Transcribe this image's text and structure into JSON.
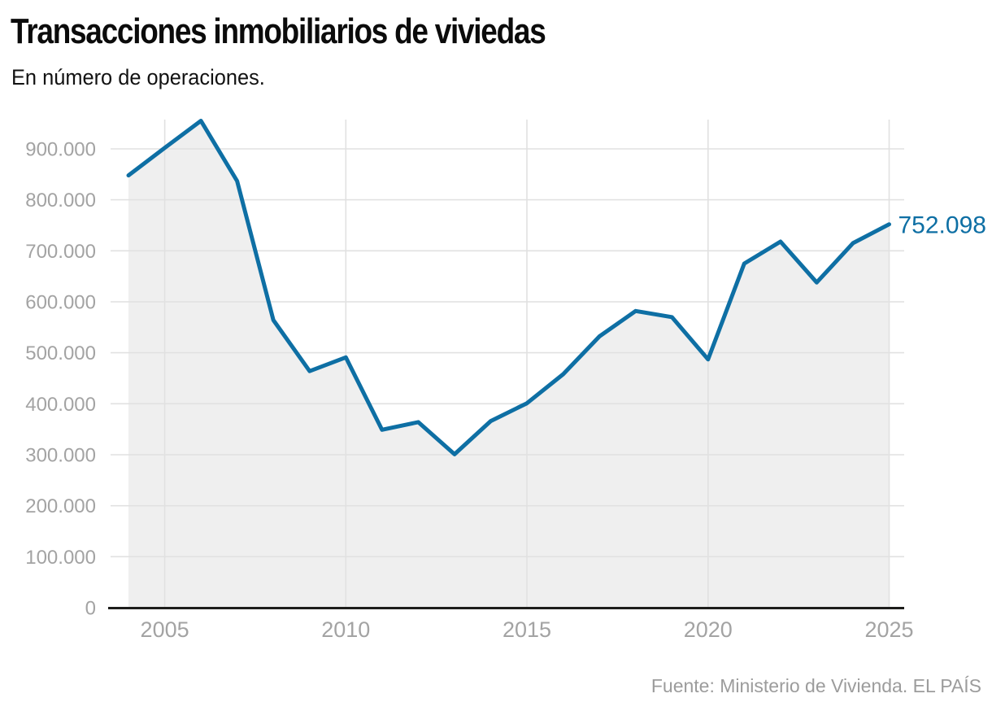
{
  "header": {
    "title": "Transacciones inmobiliarios de viviedas",
    "subtitle": "En número de operaciones."
  },
  "footer": {
    "source": "Fuente: Ministerio de Vivienda. EL PAÍS"
  },
  "chart_data": {
    "type": "area",
    "title": "Transacciones inmobiliarios de viviedas",
    "subtitle": "En número de operaciones.",
    "source": "Fuente: Ministerio de Vivienda. EL PAÍS",
    "x": [
      2004,
      2005,
      2006,
      2007,
      2008,
      2009,
      2010,
      2011,
      2012,
      2013,
      2014,
      2015,
      2016,
      2017,
      2018,
      2019,
      2020,
      2021,
      2022,
      2023,
      2024,
      2025
    ],
    "values": [
      848000,
      902000,
      955000,
      837000,
      564000,
      464000,
      491000,
      349000,
      364000,
      301000,
      366000,
      401000,
      458000,
      532000,
      582000,
      570000,
      487000,
      675000,
      718000,
      638000,
      715000,
      752098
    ],
    "end_label": "752.098",
    "xlabel": "",
    "ylabel": "",
    "xlim": [
      2004,
      2025
    ],
    "ylim": [
      0,
      960000
    ],
    "grid": true,
    "legend": false,
    "x_ticks": [
      {
        "value": 2005,
        "label": "2005"
      },
      {
        "value": 2010,
        "label": "2010"
      },
      {
        "value": 2015,
        "label": "2015"
      },
      {
        "value": 2020,
        "label": "2020"
      },
      {
        "value": 2025,
        "label": "2025"
      }
    ],
    "y_ticks": [
      {
        "value": 0,
        "label": "0"
      },
      {
        "value": 100000,
        "label": "100.000"
      },
      {
        "value": 200000,
        "label": "200.000"
      },
      {
        "value": 300000,
        "label": "300.000"
      },
      {
        "value": 400000,
        "label": "400.000"
      },
      {
        "value": 500000,
        "label": "500.000"
      },
      {
        "value": 600000,
        "label": "600.000"
      },
      {
        "value": 700000,
        "label": "700.000"
      },
      {
        "value": 800000,
        "label": "800.000"
      },
      {
        "value": 900000,
        "label": "900.000"
      }
    ],
    "colors": {
      "line": "#0e6fa4",
      "area": "#efefef",
      "grid": "#e1e1e1",
      "axis": "#1d1d1b",
      "tick_text": "#a3a3a3",
      "value_label": "#0e6fa4"
    }
  }
}
